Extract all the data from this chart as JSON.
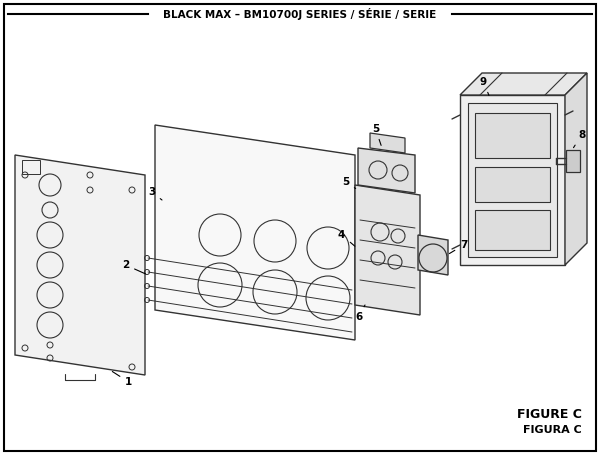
{
  "title": "BLACK MAX – BM10700J SERIES / SÉRIE / SERIE",
  "figure_label_1": "FIGURE C",
  "figure_label_2": "FIGURA C",
  "bg_color": "#ffffff",
  "border_color": "#000000",
  "line_color": "#333333",
  "fig_width": 6.0,
  "fig_height": 4.55,
  "dpi": 100
}
